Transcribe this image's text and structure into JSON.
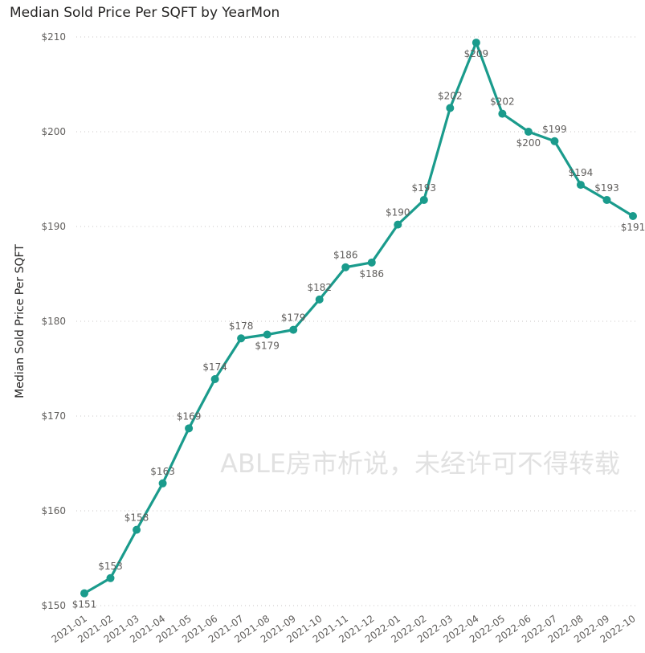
{
  "chart_data": {
    "type": "line",
    "title": "Median Sold Price Per SQFT by YearMon",
    "xlabel": "",
    "ylabel": "Median Sold Price Per SQFT",
    "ylim": [
      150,
      210
    ],
    "yticks": [
      150,
      160,
      170,
      180,
      190,
      200,
      210
    ],
    "ytick_labels": [
      "$150",
      "$160",
      "$170",
      "$180",
      "$190",
      "$200",
      "$210"
    ],
    "categories": [
      "2021-01",
      "2021-02",
      "2021-03",
      "2021-04",
      "2021-05",
      "2021-06",
      "2021-07",
      "2021-08",
      "2021-09",
      "2021-10",
      "2021-11",
      "2021-12",
      "2022-01",
      "2022-02",
      "2022-03",
      "2022-04",
      "2022-05",
      "2022-06",
      "2022-07",
      "2022-08",
      "2022-09",
      "2022-10"
    ],
    "series": [
      {
        "name": "Median Sold Price Per SQFT",
        "color": "#1a9b8c",
        "values": [
          151.3,
          152.9,
          158.0,
          162.9,
          168.7,
          173.9,
          178.2,
          178.6,
          179.1,
          182.3,
          185.7,
          186.2,
          190.2,
          192.8,
          202.5,
          209.4,
          201.9,
          200.0,
          199.0,
          194.4,
          192.8,
          191.1
        ],
        "data_labels": [
          "$151",
          "$153",
          "$158",
          "$163",
          "$169",
          "$174",
          "$178",
          "$179",
          "$179",
          "$182",
          "$186",
          "$186",
          "$190",
          "$193",
          "$202",
          "$209",
          "$202",
          "$200",
          "$199",
          "$194",
          "$193",
          "$191"
        ],
        "label_position": [
          "below",
          "above",
          "above",
          "above",
          "above",
          "above",
          "above",
          "below",
          "above",
          "above",
          "above",
          "below",
          "above",
          "above",
          "above",
          "below",
          "above",
          "below",
          "above",
          "above",
          "above",
          "below"
        ]
      }
    ],
    "grid": true,
    "legend": "none"
  },
  "watermark": "ABLE房市析说，未经许可不得转载"
}
